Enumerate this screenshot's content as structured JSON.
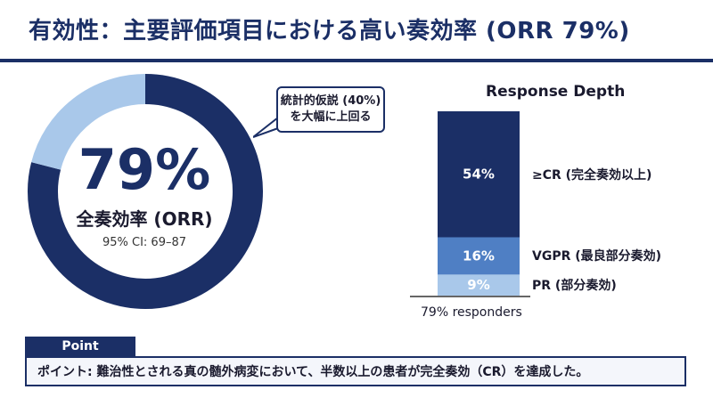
{
  "title": "有効性：主要評価項目における高い奏効率 (ORR 79%)",
  "donut": {
    "value_text": "79%",
    "label": "全奏効率 (ORR)",
    "ci": "95% CI: 69–87",
    "value": 79,
    "colors": {
      "filled": "#1b2f66",
      "remainder": "#a9c8ea"
    }
  },
  "callout": {
    "line1": "統計的仮説 (40%)",
    "line2": "を大幅に上回る"
  },
  "chart_data": [
    {
      "type": "pie",
      "categories": [
        "ORR",
        ""
      ],
      "values": [
        79,
        21
      ],
      "title": "",
      "center_text": "79%",
      "center_label": "全奏効率 (ORR)",
      "annotation": "95% CI: 69–87"
    },
    {
      "type": "bar",
      "title": "Response Depth",
      "categories": [
        "≥CR (完全奏効以上)",
        "VGPR (最良部分奏効)",
        "PR (部分奏効)"
      ],
      "values": [
        54,
        16,
        9
      ],
      "value_labels": [
        "54%",
        "16%",
        "9%"
      ],
      "stacked": true,
      "footer": "79% responders",
      "colors": [
        "#1b2f66",
        "#4f7fc4",
        "#a9c8ea"
      ]
    }
  ],
  "point": {
    "tab": "Point",
    "text": "ポイント: 難治性とされる真の髄外病変において、半数以上の患者が完全奏効（CR）を達成した。"
  }
}
